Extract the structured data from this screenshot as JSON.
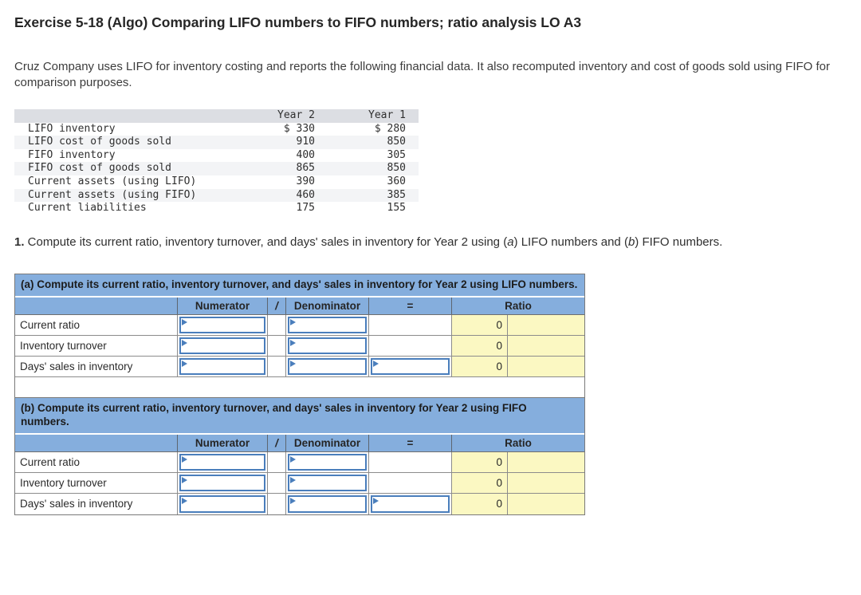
{
  "header": {
    "title": "Exercise 5-18 (Algo) Comparing LIFO numbers to FIFO numbers; ratio analysis LO A3"
  },
  "intro": {
    "text": "Cruz Company uses LIFO for inventory costing and reports the following financial data. It also recomputed inventory and cost of goods sold using FIFO for comparison purposes."
  },
  "financial_table": {
    "year2_header": "Year 2",
    "year1_header": "Year 1",
    "rows": [
      {
        "label": "LIFO inventory",
        "year2": "$ 330",
        "year1": "$ 280"
      },
      {
        "label": "LIFO cost of goods sold",
        "year2": "910",
        "year1": "850"
      },
      {
        "label": "FIFO inventory",
        "year2": "400",
        "year1": "305"
      },
      {
        "label": "FIFO cost of goods sold",
        "year2": "865",
        "year1": "850"
      },
      {
        "label": "Current assets (using LIFO)",
        "year2": "390",
        "year1": "360"
      },
      {
        "label": "Current assets (using FIFO)",
        "year2": "460",
        "year1": "385"
      },
      {
        "label": "Current liabilities",
        "year2": "175",
        "year1": "155"
      }
    ]
  },
  "instruction": {
    "number": "1.",
    "text_before_a": " Compute its current ratio, inventory turnover, and days' sales in inventory for Year 2 using (",
    "a": "a",
    "text_between": ") LIFO numbers and (",
    "b": "b",
    "text_after": ") FIFO numbers."
  },
  "ratio_tables": {
    "column_headers": {
      "numerator": "Numerator",
      "slash": "/",
      "denominator": "Denominator",
      "equals": "=",
      "ratio": "Ratio"
    },
    "sections": [
      {
        "header": "(a) Compute its current ratio, inventory turnover, and days' sales in inventory for Year 2 using LIFO numbers.",
        "rows": [
          {
            "label": "Current ratio",
            "numerator_value": "",
            "denominator_value": "",
            "ratio_value": "0"
          },
          {
            "label": "Inventory turnover",
            "numerator_value": "",
            "denominator_value": "",
            "ratio_value": "0"
          },
          {
            "label": "Days' sales in inventory",
            "numerator_value": "",
            "denominator_value": "",
            "equals_value": "",
            "ratio_value": "0"
          }
        ]
      },
      {
        "header": "(b) Compute its current ratio, inventory turnover, and days' sales in inventory for Year 2 using FIFO numbers.",
        "rows": [
          {
            "label": "Current ratio",
            "numerator_value": "",
            "denominator_value": "",
            "ratio_value": "0"
          },
          {
            "label": "Inventory turnover",
            "numerator_value": "",
            "denominator_value": "",
            "ratio_value": "0"
          },
          {
            "label": "Days' sales in inventory",
            "numerator_value": "",
            "denominator_value": "",
            "equals_value": "",
            "ratio_value": "0"
          }
        ]
      }
    ]
  },
  "colors": {
    "section-blue": "#85aedd",
    "ratio-yellow": "#fbf8c2",
    "mono-header-gray": "#dcdee3",
    "mono-alt-gray": "#f3f4f6",
    "input-border-blue": "#4a7ebc",
    "grid-border-gray": "#8c8c8c"
  }
}
